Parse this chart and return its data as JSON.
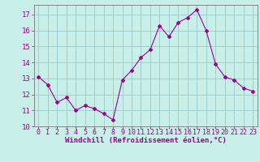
{
  "x": [
    0,
    1,
    2,
    3,
    4,
    5,
    6,
    7,
    8,
    9,
    10,
    11,
    12,
    13,
    14,
    15,
    16,
    17,
    18,
    19,
    20,
    21,
    22,
    23
  ],
  "y": [
    13.1,
    12.6,
    11.5,
    11.8,
    11.0,
    11.3,
    11.1,
    10.8,
    10.4,
    12.9,
    13.5,
    14.3,
    14.8,
    16.3,
    15.6,
    16.5,
    16.8,
    17.3,
    16.0,
    13.9,
    13.1,
    12.9,
    12.4,
    12.2
  ],
  "line_color": "#990099",
  "marker": "D",
  "marker_size": 2,
  "bg_color": "#c8f0e8",
  "grid_color": "#99cccc",
  "xlabel": "Windchill (Refroidissement éolien,°C)",
  "ylabel": "",
  "xlim": [
    -0.5,
    23.5
  ],
  "ylim": [
    10,
    17.6
  ],
  "yticks": [
    10,
    11,
    12,
    13,
    14,
    15,
    16,
    17
  ],
  "xticks": [
    0,
    1,
    2,
    3,
    4,
    5,
    6,
    7,
    8,
    9,
    10,
    11,
    12,
    13,
    14,
    15,
    16,
    17,
    18,
    19,
    20,
    21,
    22,
    23
  ],
  "label_color": "#990099",
  "tick_color": "#990099",
  "spine_color": "#777777",
  "font_size_xlabel": 6.5,
  "font_size_ytick": 6.5,
  "font_size_xtick": 6.0
}
